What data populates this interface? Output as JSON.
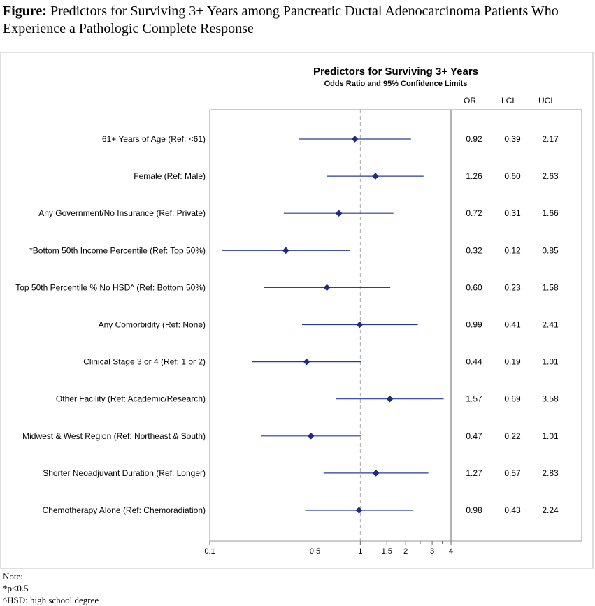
{
  "figure": {
    "label": "Figure:",
    "title": "Predictors for Surviving 3+ Years among Pancreatic Ductal Adenocarcinoma Patients Who Experience a Pathologic Complete Response"
  },
  "chart_data": {
    "type": "forest",
    "title": "Predictors for Surviving 3+ Years",
    "subtitle": "Odds Ratio and 95% Confidence Limits",
    "x_scale": "log",
    "xlim": [
      0.1,
      4
    ],
    "reference_line": 1,
    "ticks": [
      0.1,
      0.5,
      1,
      1.5,
      2,
      3,
      4
    ],
    "tick_labels": [
      "0.1",
      "0.5",
      "1",
      "1.5",
      "2",
      "3",
      "4"
    ],
    "minor_ticks": [
      2.5,
      3.5
    ],
    "column_headers": [
      "OR",
      "LCL",
      "UCL"
    ],
    "colors": {
      "marker": "#1f2a80",
      "ci": "#2b3aa0",
      "reference": "#aaaaaa",
      "frame": "#999999"
    },
    "rows": [
      {
        "label": "61+ Years of Age (Ref: <61)",
        "or": 0.92,
        "lcl": 0.39,
        "ucl": 2.17,
        "or_text": "0.92",
        "lcl_text": "0.39",
        "ucl_text": "2.17"
      },
      {
        "label": "Female (Ref: Male)",
        "or": 1.26,
        "lcl": 0.6,
        "ucl": 2.63,
        "or_text": "1.26",
        "lcl_text": "0.60",
        "ucl_text": "2.63"
      },
      {
        "label": "Any Government/No Insurance (Ref: Private)",
        "or": 0.72,
        "lcl": 0.31,
        "ucl": 1.66,
        "or_text": "0.72",
        "lcl_text": "0.31",
        "ucl_text": "1.66"
      },
      {
        "label": "*Bottom 50th Income Percentile (Ref: Top 50%)",
        "or": 0.32,
        "lcl": 0.12,
        "ucl": 0.85,
        "or_text": "0.32",
        "lcl_text": "0.12",
        "ucl_text": "0.85"
      },
      {
        "label": "Top 50th Percentile % No HSD^ (Ref: Bottom 50%)",
        "or": 0.6,
        "lcl": 0.23,
        "ucl": 1.58,
        "or_text": "0.60",
        "lcl_text": "0.23",
        "ucl_text": "1.58"
      },
      {
        "label": "Any Comorbidity (Ref: None)",
        "or": 0.99,
        "lcl": 0.41,
        "ucl": 2.41,
        "or_text": "0.99",
        "lcl_text": "0.41",
        "ucl_text": "2.41"
      },
      {
        "label": "Clinical Stage 3 or 4 (Ref: 1 or 2)",
        "or": 0.44,
        "lcl": 0.19,
        "ucl": 1.01,
        "or_text": "0.44",
        "lcl_text": "0.19",
        "ucl_text": "1.01"
      },
      {
        "label": "Other Facility (Ref: Academic/Research)",
        "or": 1.57,
        "lcl": 0.69,
        "ucl": 3.58,
        "or_text": "1.57",
        "lcl_text": "0.69",
        "ucl_text": "3.58"
      },
      {
        "label": "Midwest & West Region (Ref: Northeast & South)",
        "or": 0.47,
        "lcl": 0.22,
        "ucl": 1.01,
        "or_text": "0.47",
        "lcl_text": "0.22",
        "ucl_text": "1.01"
      },
      {
        "label": "Shorter Neoadjuvant Duration (Ref: Longer)",
        "or": 1.27,
        "lcl": 0.57,
        "ucl": 2.83,
        "or_text": "1.27",
        "lcl_text": "0.57",
        "ucl_text": "2.83"
      },
      {
        "label": "Chemotherapy Alone (Ref: Chemoradiation)",
        "or": 0.98,
        "lcl": 0.43,
        "ucl": 2.24,
        "or_text": "0.98",
        "lcl_text": "0.43",
        "ucl_text": "2.24"
      }
    ]
  },
  "notes": {
    "heading": "Note:",
    "lines": [
      "*p<0.5",
      "^HSD: high school degree"
    ]
  }
}
